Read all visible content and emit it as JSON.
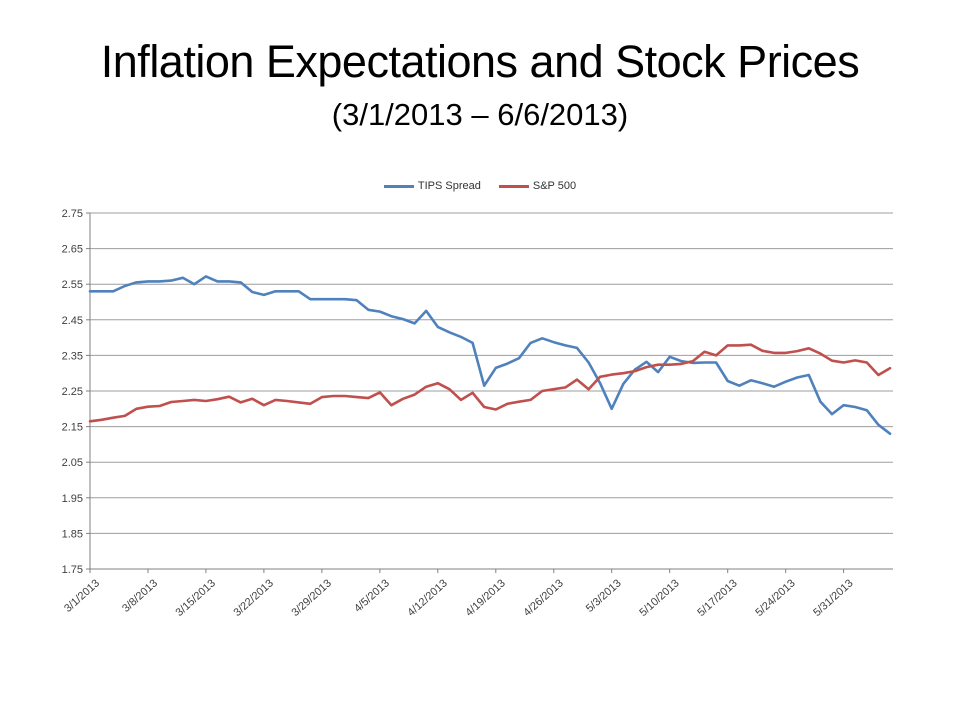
{
  "title": "Inflation Expectations and Stock Prices",
  "subtitle": "(3/1/2013 – 6/6/2013)",
  "colors": {
    "tips_spread": "#4F81BD",
    "sp500": "#C0504D",
    "gridline": "#9d9d9d",
    "axis": "#808080",
    "axis_label": "#3f3f3f",
    "background": "#ffffff"
  },
  "chart_data": {
    "type": "line",
    "title": "Inflation Expectations and Stock Prices (3/1/2013 – 6/6/2013)",
    "legend_position": "top",
    "grid": true,
    "ylim": [
      1.75,
      2.75
    ],
    "y_tick_step": 0.1,
    "y_tick_labels": [
      "1.75",
      "1.85",
      "1.95",
      "2.05",
      "2.15",
      "2.25",
      "2.35",
      "2.45",
      "2.55",
      "2.65",
      "2.75"
    ],
    "x_tick_labels": [
      "3/1/2013",
      "3/8/2013",
      "3/15/2013",
      "3/22/2013",
      "3/29/2013",
      "4/5/2013",
      "4/12/2013",
      "4/19/2013",
      "4/26/2013",
      "5/3/2013",
      "5/10/2013",
      "5/17/2013",
      "5/24/2013",
      "5/31/2013"
    ],
    "x_points_per_tick": 5,
    "x_description": "daily weekday observations, 3/1/2013 through 6/6/2013",
    "series": [
      {
        "name": "TIPS Spread",
        "color": "#4F81BD",
        "values": [
          2.53,
          2.53,
          2.53,
          2.545,
          2.555,
          2.558,
          2.558,
          2.56,
          2.568,
          2.55,
          2.572,
          2.558,
          2.558,
          2.555,
          2.528,
          2.52,
          2.53,
          2.53,
          2.53,
          2.508,
          2.508,
          2.508,
          2.508,
          2.505,
          2.478,
          2.473,
          2.46,
          2.452,
          2.44,
          2.475,
          2.43,
          2.415,
          2.402,
          2.385,
          2.265,
          2.315,
          2.327,
          2.342,
          2.385,
          2.398,
          2.387,
          2.378,
          2.371,
          2.33,
          2.272,
          2.2,
          2.27,
          2.31,
          2.332,
          2.303,
          2.346,
          2.334,
          2.329,
          2.33,
          2.33,
          2.278,
          2.265,
          2.28,
          2.272,
          2.262,
          2.276,
          2.288,
          2.295,
          2.22,
          2.185,
          2.21,
          2.205,
          2.196,
          2.155,
          2.13
        ]
      },
      {
        "name": "S&P 500",
        "color": "#C0504D",
        "values": [
          2.165,
          2.169,
          2.175,
          2.18,
          2.2,
          2.206,
          2.208,
          2.219,
          2.222,
          2.225,
          2.222,
          2.227,
          2.234,
          2.218,
          2.228,
          2.21,
          2.225,
          2.222,
          2.218,
          2.214,
          2.233,
          2.236,
          2.236,
          2.233,
          2.23,
          2.246,
          2.21,
          2.228,
          2.24,
          2.262,
          2.272,
          2.255,
          2.225,
          2.245,
          2.205,
          2.198,
          2.214,
          2.22,
          2.225,
          2.25,
          2.255,
          2.26,
          2.282,
          2.255,
          2.29,
          2.296,
          2.3,
          2.306,
          2.317,
          2.324,
          2.324,
          2.326,
          2.334,
          2.36,
          2.35,
          2.378,
          2.378,
          2.38,
          2.363,
          2.357,
          2.357,
          2.362,
          2.37,
          2.355,
          2.335,
          2.33,
          2.336,
          2.33,
          2.295,
          2.314
        ]
      }
    ]
  }
}
